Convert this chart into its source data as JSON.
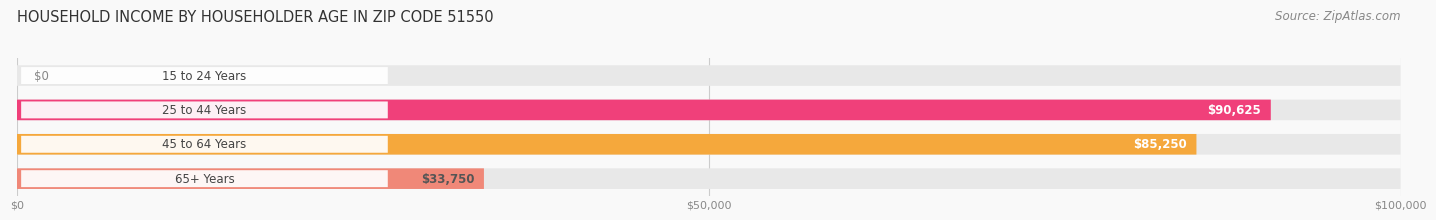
{
  "title": "HOUSEHOLD INCOME BY HOUSEHOLDER AGE IN ZIP CODE 51550",
  "source": "Source: ZipAtlas.com",
  "categories": [
    "15 to 24 Years",
    "25 to 44 Years",
    "45 to 64 Years",
    "65+ Years"
  ],
  "values": [
    0,
    90625,
    85250,
    33750
  ],
  "bar_colors": [
    "#a8a8d8",
    "#f0407a",
    "#f5a83c",
    "#f08878"
  ],
  "bar_bg_color": "#e8e8e8",
  "label_colors": [
    "#666666",
    "#ffffff",
    "#ffffff",
    "#555555"
  ],
  "value_labels": [
    "$0",
    "$90,625",
    "$85,250",
    "$33,750"
  ],
  "xmax": 100000,
  "xtick_values": [
    0,
    50000,
    100000
  ],
  "xtick_labels": [
    "$0",
    "$50,000",
    "$100,000"
  ],
  "background_color": "#f9f9f9",
  "title_fontsize": 10.5,
  "source_fontsize": 8.5,
  "bar_label_fontsize": 8.5,
  "value_label_fontsize": 8.5,
  "bar_height": 0.6,
  "title_color": "#333333",
  "source_color": "#888888",
  "category_label_color": "#444444",
  "tick_label_color": "#888888"
}
